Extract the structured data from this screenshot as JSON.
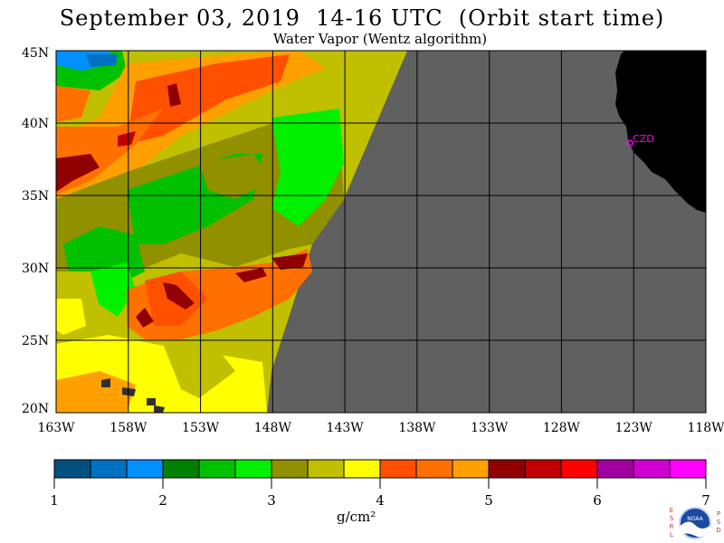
{
  "header": {
    "title": "September 03, 2019  14-16 UTC  (Orbit start time)",
    "subtitle": "Water Vapor (Wentz algorithm)"
  },
  "map": {
    "lat_labels": [
      "45N",
      "40N",
      "35N",
      "30N",
      "25N",
      "20N"
    ],
    "lon_labels": [
      "163W",
      "158W",
      "153W",
      "148W",
      "143W",
      "138W",
      "133W",
      "128W",
      "123W",
      "118W"
    ],
    "station_label": "CZD",
    "land_color": "#000000",
    "no_data_color": "#606060",
    "station_color": "#ff00ff"
  },
  "colorbar": {
    "colors": [
      "#005080",
      "#0070c0",
      "#0090ff",
      "#008000",
      "#00c000",
      "#00f000",
      "#909000",
      "#c0c000",
      "#ffff00",
      "#ff5000",
      "#ff7000",
      "#ffa000",
      "#900000",
      "#c00000",
      "#ff0000",
      "#a000a0",
      "#d000d0",
      "#ff00ff"
    ],
    "tick_labels": [
      "1",
      "2",
      "3",
      "4",
      "5",
      "6",
      "7"
    ],
    "units": "g/cm²"
  },
  "logo": {
    "left_letters": "ESRL",
    "right_letters": "PSD",
    "text": "NOAA"
  }
}
